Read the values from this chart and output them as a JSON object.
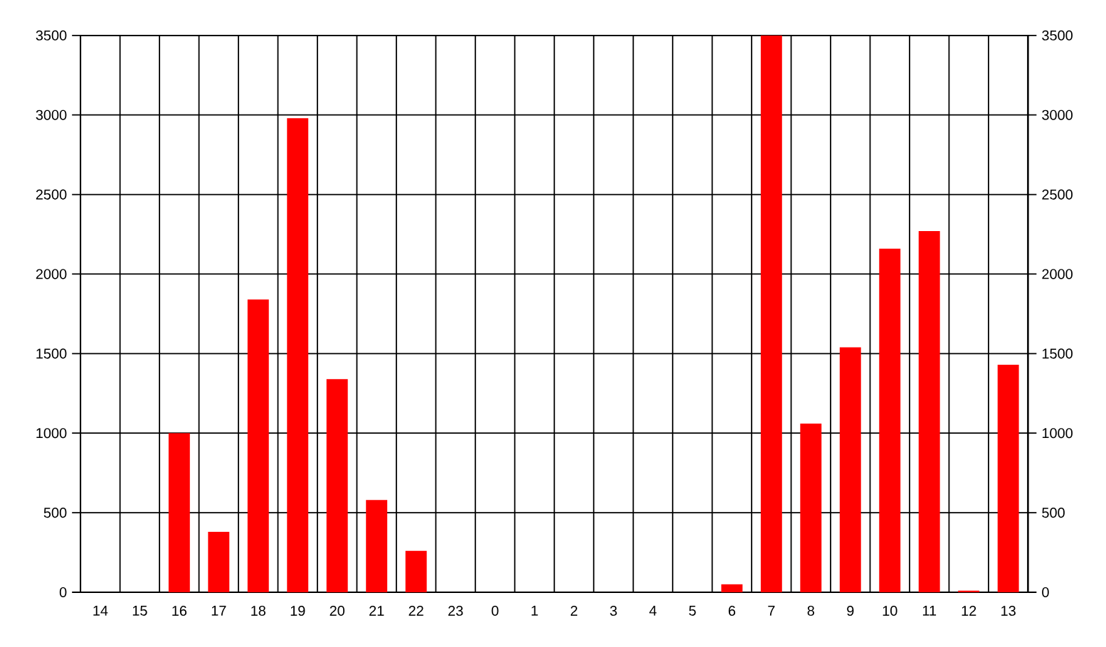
{
  "chart_data": {
    "type": "bar",
    "categories": [
      "14",
      "15",
      "16",
      "17",
      "18",
      "19",
      "20",
      "21",
      "22",
      "23",
      "0",
      "1",
      "2",
      "3",
      "4",
      "5",
      "6",
      "7",
      "8",
      "9",
      "10",
      "11",
      "12",
      "13"
    ],
    "values": [
      0,
      0,
      1000,
      380,
      1840,
      2980,
      1340,
      580,
      260,
      0,
      0,
      0,
      0,
      0,
      0,
      0,
      50,
      3500,
      1060,
      1540,
      2160,
      2270,
      10,
      1430
    ],
    "color": "#ff0000",
    "ylim": [
      0,
      3500
    ],
    "yticks": [
      0,
      500,
      1000,
      1500,
      2000,
      2500,
      3000,
      3500
    ],
    "y2lim": [
      0,
      3500
    ],
    "y2ticks": [
      0,
      500,
      1000,
      1500,
      2000,
      2500,
      3000,
      3500
    ],
    "grid": true
  }
}
